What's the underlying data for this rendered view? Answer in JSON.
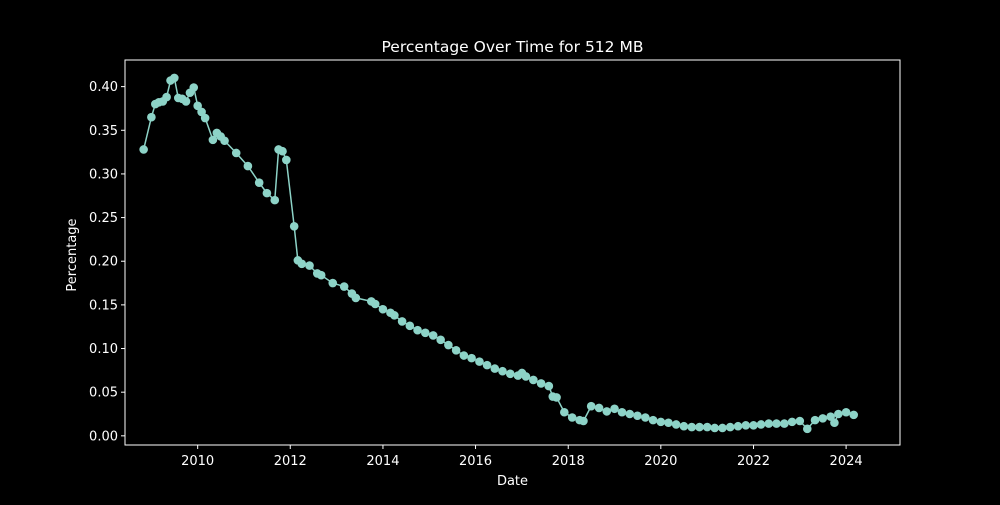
{
  "chart_data": {
    "type": "line",
    "title": "Percentage Over Time for 512 MB",
    "xlabel": "Date",
    "ylabel": "Percentage",
    "x_ticks": [
      "2010",
      "2012",
      "2014",
      "2016",
      "2018",
      "2020",
      "2022",
      "2024"
    ],
    "y_ticks": [
      "0.00",
      "0.05",
      "0.10",
      "0.15",
      "0.20",
      "0.25",
      "0.30",
      "0.35",
      "0.40"
    ],
    "xlim": [
      "2008-06-07",
      "2025-03-01"
    ],
    "ylim": [
      -0.0105,
      0.4305
    ],
    "grid": false,
    "legend": "none",
    "colors": {
      "background": "#000000",
      "series": "#8dd3c7",
      "axes": "#ffffff"
    },
    "marker": "circle",
    "series": [
      {
        "x": [
          "2008-11-01",
          "2009-01-01",
          "2009-02-01",
          "2009-03-01",
          "2009-04-01",
          "2009-05-01",
          "2009-06-01",
          "2009-07-01",
          "2009-08-01",
          "2009-09-01",
          "2009-10-01",
          "2009-11-01",
          "2009-12-01",
          "2010-01-01",
          "2010-02-01",
          "2010-03-01",
          "2010-05-01",
          "2010-06-01",
          "2010-07-01",
          "2010-08-01",
          "2010-11-01",
          "2011-02-01",
          "2011-05-01",
          "2011-07-01",
          "2011-09-01",
          "2011-10-01",
          "2011-11-01",
          "2011-12-01",
          "2012-02-01",
          "2012-03-01",
          "2012-04-01",
          "2012-06-01",
          "2012-08-01",
          "2012-09-01",
          "2012-12-01",
          "2013-03-01",
          "2013-05-01",
          "2013-06-01",
          "2013-10-01",
          "2013-11-01",
          "2014-01-01",
          "2014-03-01",
          "2014-04-01",
          "2014-06-01",
          "2014-08-01",
          "2014-10-01",
          "2014-12-01",
          "2015-02-01",
          "2015-04-01",
          "2015-06-01",
          "2015-08-01",
          "2015-10-01",
          "2015-12-01",
          "2016-02-01",
          "2016-04-01",
          "2016-06-01",
          "2016-08-01",
          "2016-10-01",
          "2016-12-01",
          "2017-01-01",
          "2017-02-01",
          "2017-04-01",
          "2017-06-01",
          "2017-08-01",
          "2017-09-01",
          "2017-10-01",
          "2017-12-01",
          "2018-02-01",
          "2018-04-01",
          "2018-05-01",
          "2018-07-01",
          "2018-09-01",
          "2018-11-01",
          "2019-01-01",
          "2019-03-01",
          "2019-05-01",
          "2019-07-01",
          "2019-09-01",
          "2019-11-01",
          "2020-01-01",
          "2020-03-01",
          "2020-05-01",
          "2020-07-01",
          "2020-09-01",
          "2020-11-01",
          "2021-01-01",
          "2021-03-01",
          "2021-05-01",
          "2021-07-01",
          "2021-09-01",
          "2021-11-01",
          "2022-01-01",
          "2022-03-01",
          "2022-05-01",
          "2022-07-01",
          "2022-09-01",
          "2022-11-01",
          "2023-01-01",
          "2023-03-01",
          "2023-05-01",
          "2023-07-01",
          "2023-09-01",
          "2023-10-01",
          "2023-11-01",
          "2024-01-01",
          "2024-03-01"
        ],
        "y": [
          0.328,
          0.365,
          0.38,
          0.382,
          0.383,
          0.388,
          0.407,
          0.41,
          0.387,
          0.386,
          0.383,
          0.393,
          0.399,
          0.378,
          0.371,
          0.364,
          0.339,
          0.347,
          0.343,
          0.338,
          0.324,
          0.309,
          0.29,
          0.278,
          0.27,
          0.328,
          0.326,
          0.316,
          0.24,
          0.201,
          0.197,
          0.195,
          0.186,
          0.184,
          0.175,
          0.171,
          0.163,
          0.158,
          0.154,
          0.151,
          0.145,
          0.141,
          0.138,
          0.131,
          0.126,
          0.121,
          0.118,
          0.115,
          0.11,
          0.104,
          0.098,
          0.092,
          0.089,
          0.085,
          0.081,
          0.077,
          0.074,
          0.071,
          0.069,
          0.072,
          0.068,
          0.064,
          0.06,
          0.057,
          0.045,
          0.044,
          0.027,
          0.021,
          0.018,
          0.017,
          0.034,
          0.032,
          0.028,
          0.031,
          0.027,
          0.025,
          0.023,
          0.021,
          0.018,
          0.016,
          0.015,
          0.013,
          0.011,
          0.01,
          0.01,
          0.01,
          0.009,
          0.009,
          0.01,
          0.011,
          0.012,
          0.012,
          0.013,
          0.014,
          0.014,
          0.014,
          0.016,
          0.017,
          0.008,
          0.018,
          0.02,
          0.022,
          0.015,
          0.025,
          0.027,
          0.024
        ]
      }
    ]
  }
}
